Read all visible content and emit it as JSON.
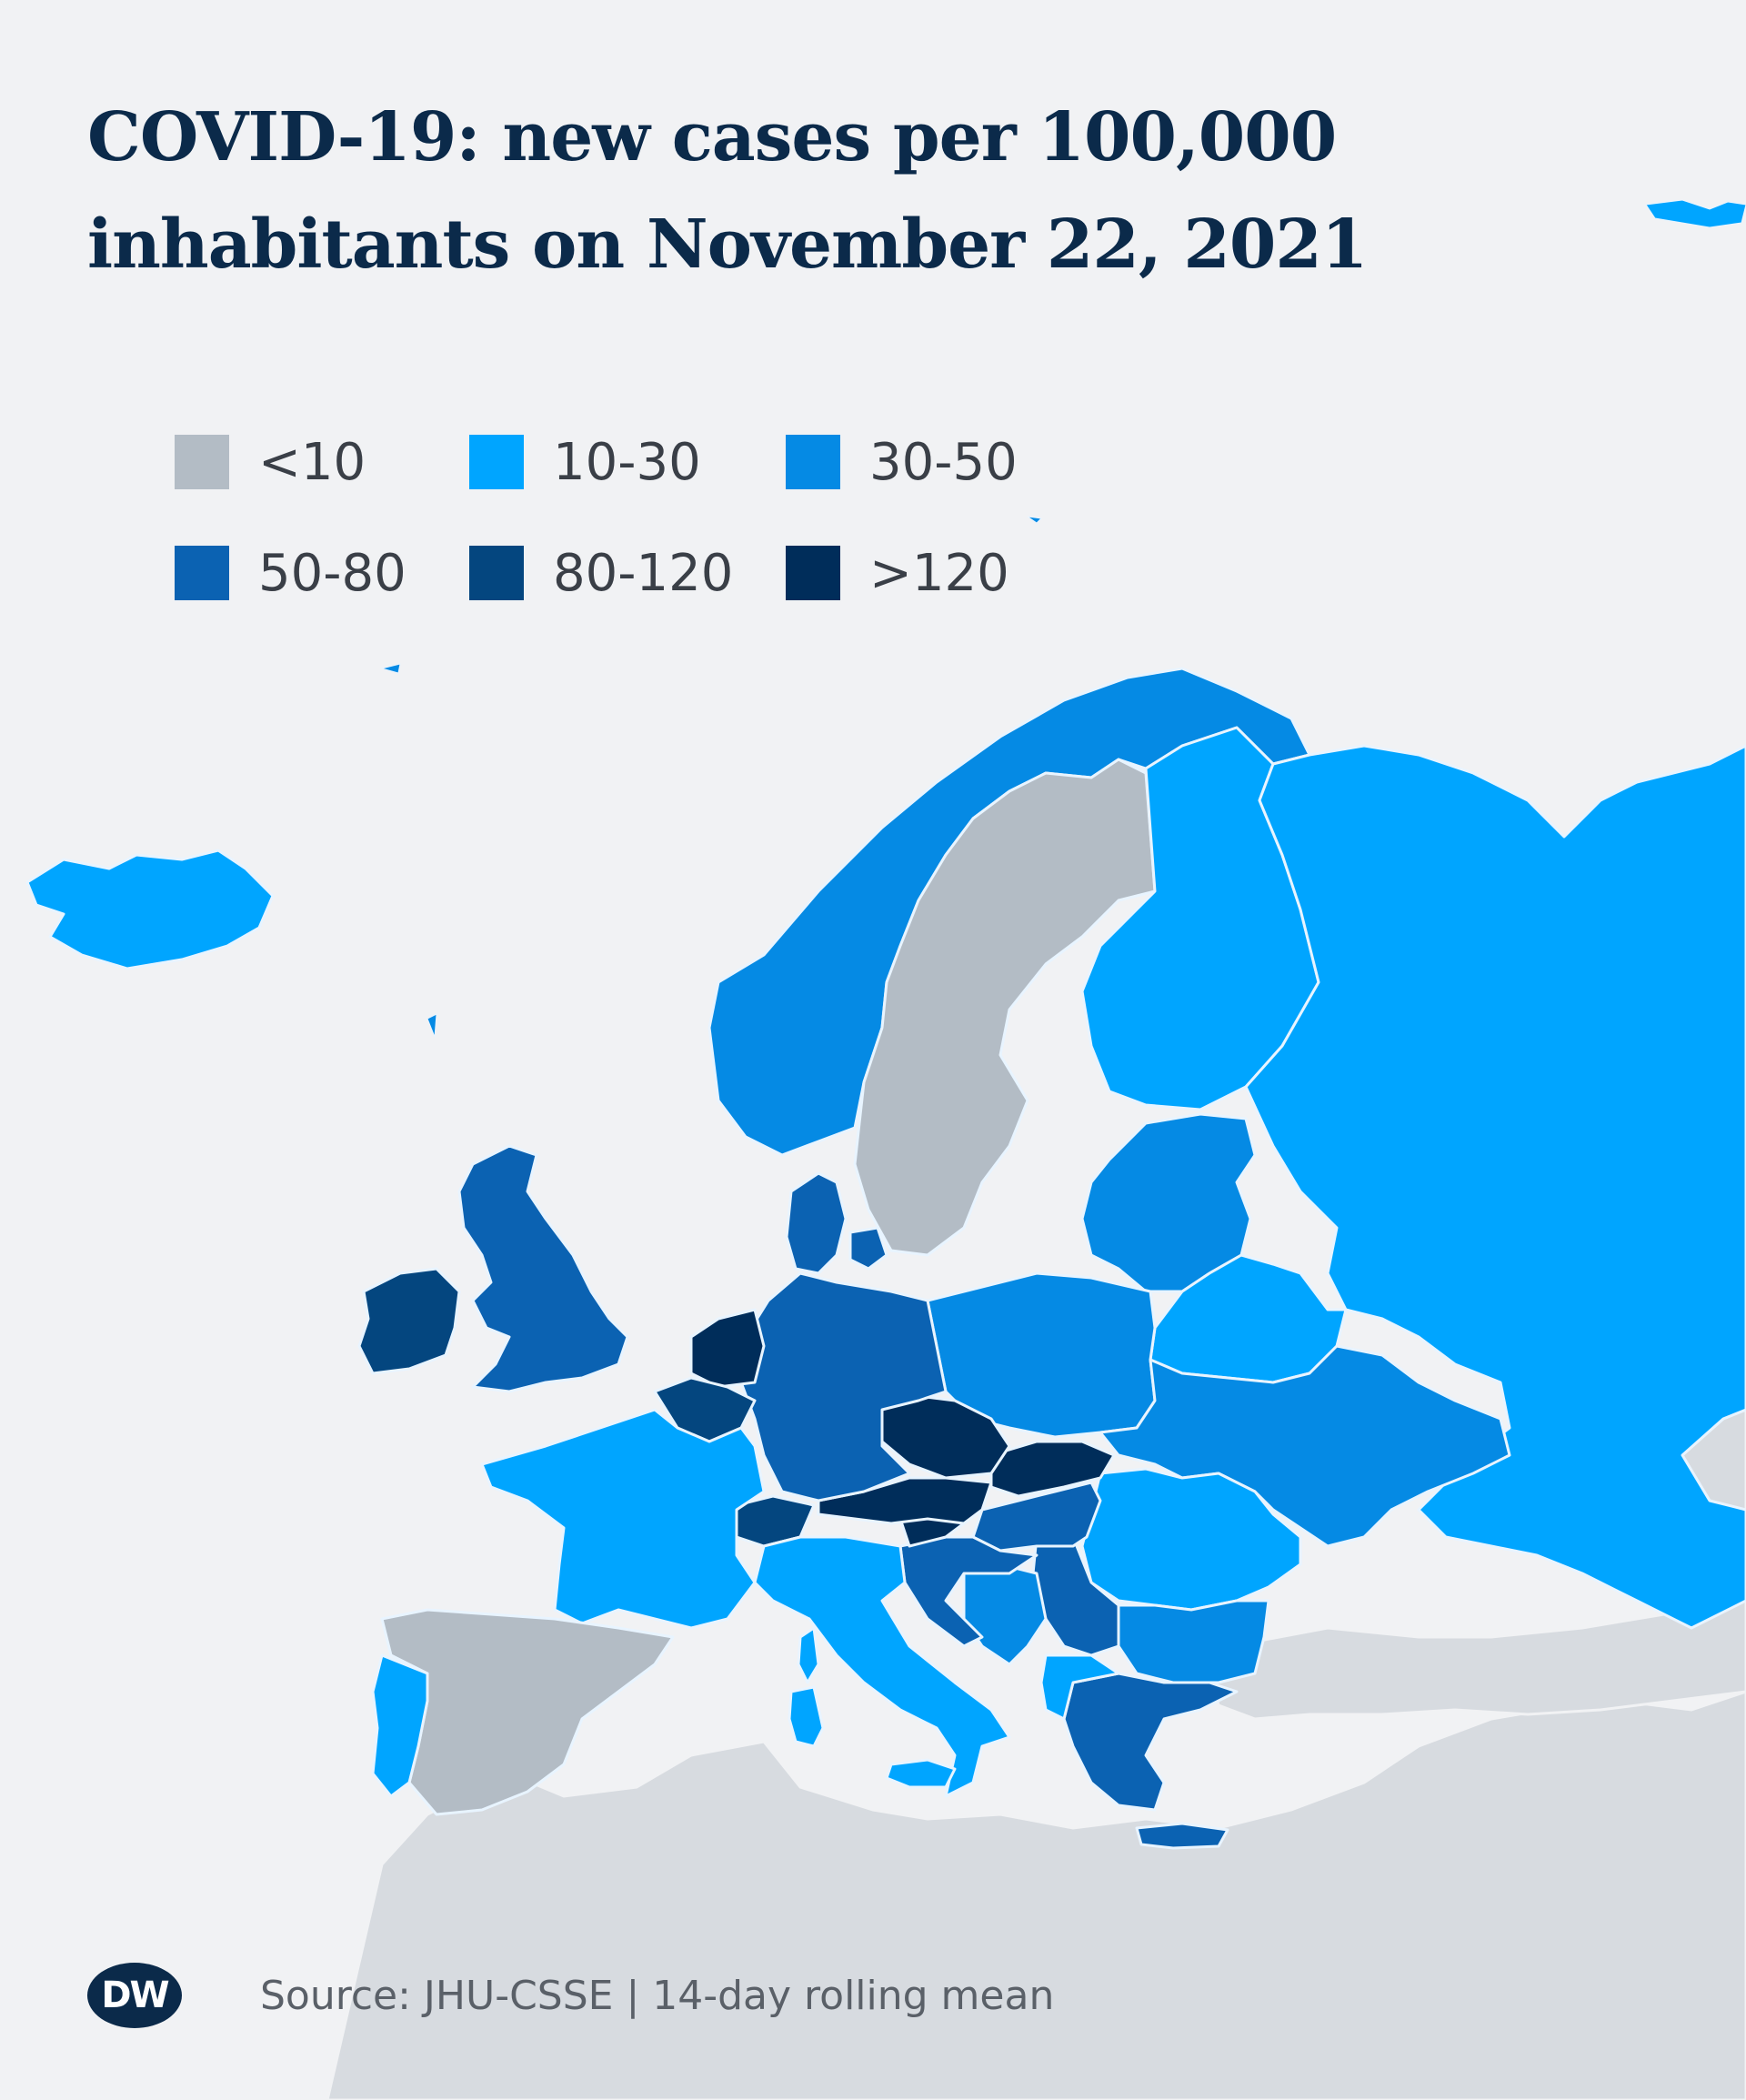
{
  "title_lines": [
    "COVID-19: new cases per 100,000",
    "inhabitants on November 22, 2021"
  ],
  "legend": [
    {
      "label": "<10",
      "color": "#b3bcc5"
    },
    {
      "label": "10-30",
      "color": "#00a5ff"
    },
    {
      "label": "30-50",
      "color": "#058ae4"
    },
    {
      "label": "50-80",
      "color": "#0b62b2"
    },
    {
      "label": "80-120",
      "color": "#04467f"
    },
    {
      "label": ">120",
      "color": "#002d5a"
    }
  ],
  "map_colors": {
    "background": "#f1f2f4",
    "no_data_land": "#d7dbe0",
    "border": "#e8f4ff"
  },
  "footer": {
    "logo_text": "DW",
    "source": "Source: JHU-CSSE | 14-day rolling mean"
  }
}
